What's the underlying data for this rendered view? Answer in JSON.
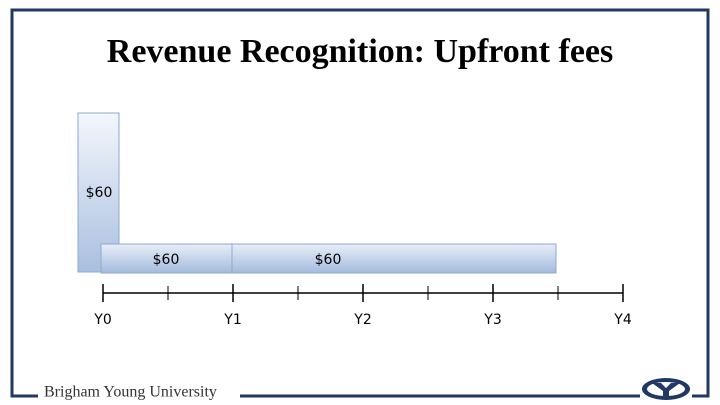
{
  "header": {
    "title": "Revenue Recognition: Upfront fees"
  },
  "bars": [
    {
      "label": "$60"
    },
    {
      "label": "$60"
    },
    {
      "label": "$60"
    }
  ],
  "timeline": {
    "labels": [
      "Y0",
      "Y1",
      "Y2",
      "Y3",
      "Y4"
    ]
  },
  "footer": {
    "text": "Brigham Young University"
  }
}
